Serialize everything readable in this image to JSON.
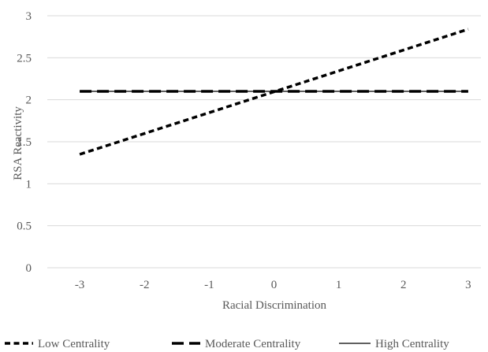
{
  "chart_data": {
    "type": "line",
    "title": "",
    "xlabel": "Racial Discrimination",
    "ylabel": "RSA Reactivity",
    "x": [
      -3,
      3
    ],
    "x_ticks": [
      -3,
      -2,
      -1,
      0,
      1,
      2,
      3
    ],
    "x_tick_labels": [
      "-3",
      "-2",
      "-1",
      "0",
      "1",
      "2",
      "3"
    ],
    "y_ticks": [
      0,
      0.5,
      1,
      1.5,
      2,
      2.5,
      3
    ],
    "y_tick_labels": [
      "0",
      "0.5",
      "1",
      "1.5",
      "2",
      "2.5",
      "3"
    ],
    "xlim": [
      -3.5,
      3.5
    ],
    "ylim": [
      0,
      3
    ],
    "grid": "horizontal",
    "legend_position": "bottom",
    "series": [
      {
        "name": "Low Centrality",
        "values": [
          1.35,
          2.84
        ],
        "line_style": "short-dash",
        "color": "#000000"
      },
      {
        "name": "Moderate Centrality",
        "values": [
          2.1,
          2.1
        ],
        "line_style": "long-dash",
        "color": "#000000"
      },
      {
        "name": "High Centrality",
        "values": [
          2.1,
          2.1
        ],
        "line_style": "solid",
        "color": "#000000"
      }
    ],
    "colors": {
      "grid": "#d9d9d9",
      "text": "#595959",
      "line": "#000000"
    }
  }
}
